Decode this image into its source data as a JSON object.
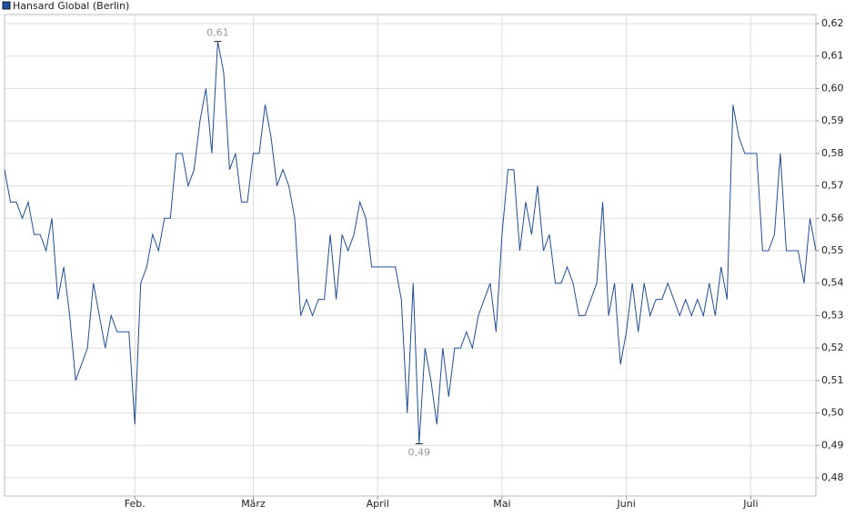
{
  "chart_data": {
    "type": "line",
    "series": [
      {
        "name": "Hansard Global (Berlin)",
        "color": "#1f4e9c",
        "values": [
          0.575,
          0.565,
          0.565,
          0.56,
          0.565,
          0.555,
          0.555,
          0.55,
          0.56,
          0.535,
          0.545,
          0.53,
          0.51,
          0.515,
          0.52,
          0.54,
          0.53,
          0.52,
          0.53,
          0.525,
          0.525,
          0.525,
          0.4965,
          0.54,
          0.545,
          0.555,
          0.55,
          0.56,
          0.56,
          0.58,
          0.58,
          0.57,
          0.575,
          0.59,
          0.6,
          0.58,
          0.6145,
          0.605,
          0.575,
          0.58,
          0.565,
          0.565,
          0.58,
          0.58,
          0.595,
          0.585,
          0.57,
          0.575,
          0.57,
          0.56,
          0.53,
          0.535,
          0.53,
          0.535,
          0.535,
          0.555,
          0.535,
          0.555,
          0.55,
          0.555,
          0.565,
          0.56,
          0.545,
          0.545,
          0.545,
          0.545,
          0.545,
          0.535,
          0.5,
          0.54,
          0.4905,
          0.52,
          0.51,
          0.4965,
          0.52,
          0.505,
          0.52,
          0.52,
          0.525,
          0.52,
          0.53,
          0.535,
          0.54,
          0.525,
          0.555,
          0.575,
          0.575,
          0.55,
          0.565,
          0.555,
          0.57,
          0.55,
          0.555,
          0.54,
          0.54,
          0.545,
          0.54,
          0.53,
          0.53,
          0.535,
          0.54,
          0.565,
          0.53,
          0.54,
          0.515,
          0.525,
          0.54,
          0.525,
          0.54,
          0.53,
          0.535,
          0.535,
          0.54,
          0.535,
          0.53,
          0.535,
          0.53,
          0.535,
          0.53,
          0.54,
          0.53,
          0.545,
          0.535,
          0.595,
          0.585,
          0.58,
          0.58,
          0.58,
          0.55,
          0.55,
          0.555,
          0.58,
          0.55,
          0.55,
          0.55,
          0.54,
          0.56,
          0.55
        ],
        "value_labels": [
          null,
          null,
          null,
          null,
          null,
          null,
          null,
          null,
          null,
          null,
          null,
          null,
          null,
          null,
          null,
          null,
          null,
          null,
          null,
          null,
          null,
          null,
          null,
          null,
          null,
          null,
          null,
          null,
          null,
          null,
          null,
          null,
          null,
          null,
          null,
          null,
          "0,61",
          null,
          null,
          null,
          null,
          null,
          null,
          null,
          null,
          null,
          null,
          null,
          null,
          null,
          null,
          null,
          null,
          null,
          null,
          null,
          null,
          null,
          null,
          null,
          null,
          null,
          null,
          null,
          null,
          null,
          null,
          null,
          null,
          null,
          "0,49",
          null,
          null,
          null,
          null,
          null,
          null,
          null,
          null,
          null,
          null,
          null,
          null,
          null,
          null,
          null,
          null,
          null,
          null,
          null,
          null,
          null,
          null,
          null,
          null,
          null,
          null,
          null,
          null,
          null,
          null,
          null,
          null,
          null,
          null,
          null,
          null,
          null,
          null,
          null,
          null,
          null,
          null,
          null,
          null,
          null,
          null,
          null,
          null,
          null,
          null,
          null,
          null,
          null,
          null,
          null,
          null,
          null,
          null,
          null,
          null,
          null,
          null,
          null,
          null,
          null,
          null,
          null
        ]
      }
    ],
    "categories": [
      null,
      null,
      null,
      null,
      null,
      null,
      null,
      null,
      null,
      null,
      null,
      null,
      null,
      null,
      null,
      null,
      null,
      null,
      null,
      null,
      null,
      null,
      "Feb.",
      null,
      null,
      null,
      null,
      null,
      null,
      null,
      null,
      null,
      null,
      null,
      null,
      null,
      null,
      null,
      null,
      null,
      null,
      null,
      "März",
      null,
      null,
      null,
      null,
      null,
      null,
      null,
      null,
      null,
      null,
      null,
      null,
      null,
      null,
      null,
      null,
      null,
      null,
      null,
      null,
      "April",
      null,
      null,
      null,
      null,
      null,
      null,
      null,
      null,
      null,
      null,
      null,
      null,
      null,
      null,
      null,
      null,
      null,
      null,
      null,
      null,
      "Mai",
      null,
      null,
      null,
      null,
      null,
      null,
      null,
      null,
      null,
      null,
      null,
      null,
      null,
      null,
      null,
      null,
      null,
      null,
      null,
      null,
      "Juni",
      null,
      null,
      null,
      null,
      null,
      null,
      null,
      null,
      null,
      null,
      null,
      null,
      null,
      null,
      null,
      null,
      null,
      null,
      null,
      null,
      "Juli",
      null,
      null,
      null,
      null,
      null,
      null,
      null,
      null,
      null,
      null,
      null
    ],
    "ylim": [
      0.4744,
      0.6228
    ],
    "yticks": [
      {
        "value": 0.48,
        "label": "0,48"
      },
      {
        "value": 0.49,
        "label": "0,49"
      },
      {
        "value": 0.5,
        "label": "0,50"
      },
      {
        "value": 0.51,
        "label": "0,51"
      },
      {
        "value": 0.52,
        "label": "0,52"
      },
      {
        "value": 0.53,
        "label": "0,53"
      },
      {
        "value": 0.54,
        "label": "0,54"
      },
      {
        "value": 0.55,
        "label": "0,55"
      },
      {
        "value": 0.56,
        "label": "0,56"
      },
      {
        "value": 0.57,
        "label": "0,57"
      },
      {
        "value": 0.58,
        "label": "0,58"
      },
      {
        "value": 0.59,
        "label": "0,59"
      },
      {
        "value": 0.6,
        "label": "0,60"
      },
      {
        "value": 0.61,
        "label": "0,61"
      },
      {
        "value": 0.62,
        "label": "0,62"
      }
    ],
    "grid": true
  }
}
